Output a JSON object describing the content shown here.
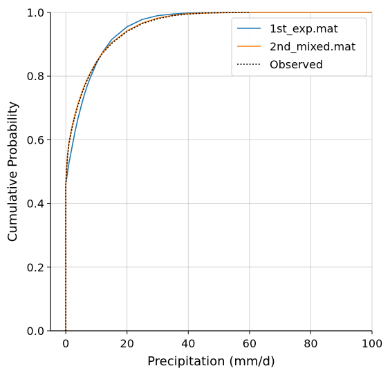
{
  "chart_data": {
    "type": "line",
    "title": "",
    "xlabel": "Precipitation (mm/d)",
    "ylabel": "Cumulative Probability",
    "xlim": [
      -5,
      100
    ],
    "ylim": [
      0,
      1
    ],
    "xticks": [
      0,
      20,
      40,
      60,
      80,
      100
    ],
    "yticks": [
      0.0,
      0.2,
      0.4,
      0.6,
      0.8,
      1.0
    ],
    "xtick_labels": [
      "0",
      "20",
      "40",
      "60",
      "80",
      "100"
    ],
    "ytick_labels": [
      "0.0",
      "0.2",
      "0.4",
      "0.6",
      "0.8",
      "1.0"
    ],
    "grid": true,
    "legend_position": "top-right",
    "series": [
      {
        "name": "1st_exp.mat",
        "color": "#1f77b4",
        "style": "solid",
        "x": [
          0,
          0,
          1,
          2,
          3,
          4,
          5,
          6,
          7,
          8,
          10,
          12,
          15,
          20,
          25,
          30,
          35,
          40,
          45,
          50,
          60,
          100
        ],
        "y": [
          0,
          0.46,
          0.525,
          0.575,
          0.625,
          0.668,
          0.705,
          0.74,
          0.77,
          0.795,
          0.84,
          0.875,
          0.915,
          0.955,
          0.978,
          0.99,
          0.995,
          0.998,
          0.999,
          1.0,
          1.0,
          1.0
        ]
      },
      {
        "name": "2nd_mixed.mat",
        "color": "#ff7f0e",
        "style": "solid",
        "x": [
          0,
          0,
          0.5,
          1,
          2,
          3,
          4,
          5,
          6,
          7,
          8,
          10,
          12,
          15,
          20,
          25,
          30,
          35,
          40,
          45,
          50,
          60,
          80,
          100
        ],
        "y": [
          0,
          0.46,
          0.545,
          0.59,
          0.64,
          0.68,
          0.713,
          0.742,
          0.768,
          0.79,
          0.81,
          0.845,
          0.874,
          0.905,
          0.942,
          0.967,
          0.982,
          0.991,
          0.996,
          0.998,
          0.999,
          1.0,
          1.0,
          1.0
        ]
      },
      {
        "name": "Observed",
        "color": "#000000",
        "style": "dotted",
        "x": [
          0,
          0,
          0.5,
          1,
          2,
          3,
          4,
          5,
          6,
          7,
          8,
          10,
          12,
          15,
          20,
          25,
          30,
          35,
          40,
          45,
          50,
          55,
          60
        ],
        "y": [
          0,
          0.46,
          0.54,
          0.585,
          0.635,
          0.675,
          0.708,
          0.738,
          0.765,
          0.788,
          0.808,
          0.843,
          0.872,
          0.903,
          0.94,
          0.965,
          0.98,
          0.99,
          0.995,
          0.998,
          0.999,
          1.0,
          1.0
        ]
      }
    ]
  }
}
